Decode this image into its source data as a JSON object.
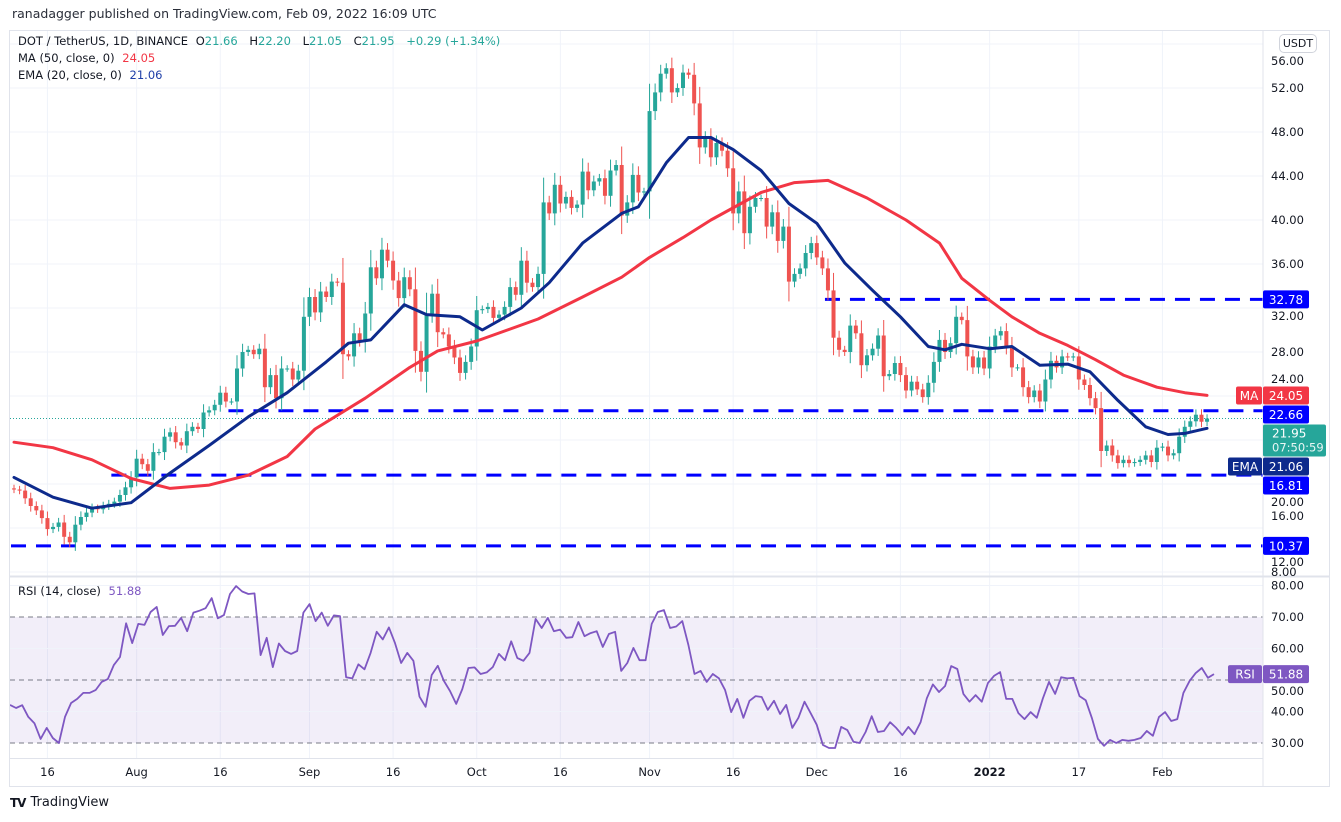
{
  "publish_line": "ranadagger published on TradingView.com, Feb 09, 2022 16:09 UTC",
  "legend": {
    "symbol": "DOT / TetherUS, 1D, BINANCE",
    "o_label": "O",
    "open": "21.66",
    "h_label": "H",
    "high": "22.20",
    "l_label": "L",
    "low": "21.05",
    "c_label": "C",
    "close": "21.95",
    "change": "+0.29 (+1.34%)",
    "ma_label": "MA (50, close, 0)",
    "ma_value": "24.05",
    "ema_label": "EMA (20, close, 0)",
    "ema_value": "21.06",
    "rsi_label": "RSI (14, close)",
    "rsi_value": "51.88"
  },
  "currency_button": "USDT",
  "footer": {
    "logo_icon": "tradingview-logo-icon",
    "logo_mark": "TV",
    "brand": "TradingView"
  },
  "colors": {
    "up": "#26a69a",
    "down": "#ef5350",
    "ma": "#f23645",
    "ema": "#0d2a8c",
    "level": "#0000ff",
    "rsi": "#7e57c2",
    "last_price": "#26a69a"
  },
  "chart_data": {
    "type": "candlestick",
    "title": "DOT / TetherUS, 1D, BINANCE",
    "start_date": "2021-07-10",
    "end_date": "2022-02-09",
    "ylim": [
      8,
      56
    ],
    "price_ticks": [
      8,
      12,
      16,
      20,
      24,
      28,
      32,
      36,
      40,
      44,
      48,
      52,
      56
    ],
    "grid": true,
    "close": [
      15.5,
      15.4,
      14.7,
      14.0,
      13.6,
      12.9,
      11.9,
      12.1,
      12.5,
      11.2,
      10.7,
      12.3,
      13.0,
      13.4,
      13.8,
      13.7,
      14.0,
      14.2,
      14.4,
      15.0,
      15.7,
      16.6,
      18.3,
      17.8,
      17.2,
      18.9,
      18.9,
      20.3,
      20.7,
      19.8,
      19.5,
      20.8,
      21.2,
      21.0,
      22.5,
      22.7,
      23.2,
      24.3,
      23.5,
      23.5,
      26.5,
      28.0,
      28.2,
      27.8,
      28.3,
      24.8,
      25.9,
      23.8,
      26.5,
      26.5,
      25.5,
      26.3,
      31.2,
      33.0,
      31.6,
      33.5,
      33.0,
      34.4,
      34.3,
      27.8,
      27.6,
      29.7,
      29.0,
      31.5,
      35.7,
      34.7,
      37.3,
      36.3,
      34.5,
      32.9,
      34.8,
      33.7,
      28.1,
      26.2,
      31.5,
      33.3,
      29.8,
      29.6,
      28.5,
      27.5,
      26.1,
      27.1,
      28.5,
      31.8,
      31.9,
      32.1,
      31.1,
      31.4,
      32.1,
      33.9,
      33.2,
      36.3,
      34.3,
      33.9,
      35.1,
      41.6,
      40.6,
      43.2,
      41.5,
      42.1,
      41.1,
      41.4,
      44.4,
      42.7,
      43.5,
      43.8,
      42.2,
      44.5,
      45.0,
      40.4,
      41.6,
      44.1,
      42.5,
      42.6,
      49.9,
      51.6,
      53.3,
      53.8,
      51.6,
      52.0,
      53.4,
      53.2,
      50.6,
      46.6,
      47.5,
      45.7,
      47.0,
      46.3,
      44.7,
      40.6,
      42.6,
      38.8,
      41.2,
      42.0,
      42.0,
      39.4,
      40.7,
      38.1,
      39.4,
      34.4,
      35.1,
      35.6,
      37.0,
      37.9,
      36.6,
      35.6,
      33.6,
      29.3,
      28.2,
      28.0,
      30.4,
      29.7,
      26.8,
      27.7,
      28.3,
      29.5,
      25.8,
      26.0,
      27.0,
      25.9,
      24.5,
      25.3,
      24.6,
      23.9,
      25.2,
      27.1,
      29.1,
      28.0,
      28.8,
      31.2,
      30.9,
      27.6,
      26.6,
      27.5,
      26.5,
      28.5,
      29.5,
      29.9,
      28.5,
      26.6,
      26.6,
      24.8,
      23.9,
      24.5,
      23.5,
      25.5,
      27.2,
      26.6,
      27.6,
      27.5,
      27.6,
      25.5,
      25.0,
      23.8,
      22.9,
      19.0,
      19.5,
      18.6,
      17.9,
      18.2,
      17.9,
      18.0,
      18.2,
      18.6,
      18.0,
      19.3,
      19.4,
      18.6,
      18.8,
      20.3,
      21.2,
      21.7,
      22.3,
      21.66,
      21.95
    ],
    "last_price": {
      "value": "21.95",
      "countdown": "07:50:59"
    },
    "ma50": [
      [
        "2021-07-10",
        19.8
      ],
      [
        "2021-07-17",
        19.3
      ],
      [
        "2021-07-24",
        18.2
      ],
      [
        "2021-07-31",
        16.5
      ],
      [
        "2021-08-07",
        15.6
      ],
      [
        "2021-08-14",
        15.9
      ],
      [
        "2021-08-21",
        16.8
      ],
      [
        "2021-08-28",
        18.5
      ],
      [
        "2021-09-02",
        21.0
      ],
      [
        "2021-09-11",
        23.8
      ],
      [
        "2021-09-19",
        26.6
      ],
      [
        "2021-09-24",
        28.1
      ],
      [
        "2021-10-01",
        29.0
      ],
      [
        "2021-10-12",
        31.0
      ],
      [
        "2021-10-20",
        33.0
      ],
      [
        "2021-10-27",
        34.8
      ],
      [
        "2021-11-01",
        36.6
      ],
      [
        "2021-11-07",
        38.4
      ],
      [
        "2021-11-12",
        40.0
      ],
      [
        "2021-11-21",
        42.5
      ],
      [
        "2021-11-27",
        43.4
      ],
      [
        "2021-12-03",
        43.6
      ],
      [
        "2021-12-10",
        42.0
      ],
      [
        "2021-12-17",
        40.0
      ],
      [
        "2021-12-23",
        37.9
      ],
      [
        "2021-12-27",
        34.7
      ],
      [
        "2022-01-01",
        32.7
      ],
      [
        "2022-01-05",
        31.2
      ],
      [
        "2022-01-10",
        29.7
      ],
      [
        "2022-01-15",
        28.6
      ],
      [
        "2022-01-20",
        27.3
      ],
      [
        "2022-01-25",
        25.9
      ],
      [
        "2022-01-31",
        24.8
      ],
      [
        "2022-02-05",
        24.3
      ],
      [
        "2022-02-09",
        24.05
      ]
    ],
    "ema20": [
      [
        "2021-07-10",
        16.6
      ],
      [
        "2021-07-17",
        14.8
      ],
      [
        "2021-07-24",
        13.8
      ],
      [
        "2021-07-31",
        14.3
      ],
      [
        "2021-08-07",
        17.0
      ],
      [
        "2021-08-14",
        19.5
      ],
      [
        "2021-08-21",
        22.1
      ],
      [
        "2021-08-28",
        24.3
      ],
      [
        "2021-09-04",
        27.1
      ],
      [
        "2021-09-08",
        28.8
      ],
      [
        "2021-09-12",
        29.1
      ],
      [
        "2021-09-18",
        32.3
      ],
      [
        "2021-09-22",
        31.4
      ],
      [
        "2021-09-28",
        31.2
      ],
      [
        "2021-10-02",
        30.0
      ],
      [
        "2021-10-09",
        32.0
      ],
      [
        "2021-10-14",
        34.3
      ],
      [
        "2021-10-20",
        37.9
      ],
      [
        "2021-10-27",
        40.6
      ],
      [
        "2021-10-30",
        41.2
      ],
      [
        "2021-11-04",
        45.2
      ],
      [
        "2021-11-08",
        47.5
      ],
      [
        "2021-11-12",
        47.5
      ],
      [
        "2021-11-16",
        46.4
      ],
      [
        "2021-11-21",
        44.5
      ],
      [
        "2021-11-26",
        41.5
      ],
      [
        "2021-12-01",
        39.7
      ],
      [
        "2021-12-06",
        36.1
      ],
      [
        "2021-12-11",
        33.6
      ],
      [
        "2021-12-16",
        31.2
      ],
      [
        "2021-12-21",
        28.5
      ],
      [
        "2021-12-24",
        28.2
      ],
      [
        "2021-12-27",
        28.7
      ],
      [
        "2022-01-01",
        28.3
      ],
      [
        "2022-01-05",
        28.5
      ],
      [
        "2022-01-10",
        26.8
      ],
      [
        "2022-01-15",
        26.9
      ],
      [
        "2022-01-19",
        26.2
      ],
      [
        "2022-01-24",
        23.6
      ],
      [
        "2022-01-29",
        21.2
      ],
      [
        "2022-02-02",
        20.5
      ],
      [
        "2022-02-05",
        20.6
      ],
      [
        "2022-02-09",
        21.06
      ]
    ],
    "levels": [
      {
        "value": 32.78,
        "label": "32.78",
        "from": "2021-12-03"
      },
      {
        "value": 22.66,
        "label": "22.66",
        "from": "2021-08-18"
      },
      {
        "value": 16.81,
        "label": "16.81",
        "from": "2021-07-28"
      },
      {
        "value": 10.37,
        "label": "10.37",
        "from": "2021-07-10"
      }
    ],
    "ma_tag": {
      "label": "MA",
      "value": "24.05"
    },
    "ema_tag": {
      "label": "EMA",
      "value": "21.06"
    },
    "time_labels": [
      {
        "label": "16",
        "date": "2021-07-16"
      },
      {
        "label": "Aug",
        "date": "2021-08-01"
      },
      {
        "label": "16",
        "date": "2021-08-16"
      },
      {
        "label": "Sep",
        "date": "2021-09-01"
      },
      {
        "label": "16",
        "date": "2021-09-16"
      },
      {
        "label": "Oct",
        "date": "2021-10-01"
      },
      {
        "label": "16",
        "date": "2021-10-16"
      },
      {
        "label": "Nov",
        "date": "2021-11-01"
      },
      {
        "label": "16",
        "date": "2021-11-16"
      },
      {
        "label": "Dec",
        "date": "2021-12-01"
      },
      {
        "label": "16",
        "date": "2021-12-16"
      },
      {
        "label": "2022",
        "date": "2022-01-01",
        "bold": true
      },
      {
        "label": "17",
        "date": "2022-01-17"
      },
      {
        "label": "Feb",
        "date": "2022-02-01"
      }
    ],
    "rsi": {
      "period": 14,
      "ylim": [
        30,
        80
      ],
      "ticks": [
        30,
        40,
        50,
        60,
        70,
        80
      ],
      "bands": [
        30,
        50,
        70
      ],
      "tag": {
        "label": "RSI",
        "value": "51.88"
      },
      "values": [
        42.1,
        41.1,
        42,
        38.3,
        36.3,
        31.3,
        34.8,
        31.6,
        30,
        38.3,
        42.7,
        44,
        45.9,
        45.9,
        46.8,
        49.4,
        50.3,
        54.8,
        57.3,
        68,
        61.7,
        67.8,
        67.5,
        71.6,
        73.2,
        64.3,
        67.1,
        67.2,
        69.7,
        65.5,
        71.4,
        72,
        72.8,
        76,
        69.6,
        70.6,
        77.3,
        79.8,
        78.1,
        77.3,
        77.5,
        57.9,
        63.4,
        54.1,
        61.6,
        59.2,
        58.3,
        59.2,
        71.4,
        74.1,
        68.7,
        71.4,
        67.2,
        70.5,
        70.3,
        50.9,
        50.5,
        55,
        53.4,
        58.6,
        65.3,
        62.9,
        66.7,
        61.7,
        55.4,
        58.6,
        56.1,
        44.7,
        41.5,
        51.6,
        54.5,
        49.7,
        46.5,
        42.4,
        47.1,
        53.8,
        54,
        51.9,
        52.4,
        54.1,
        58.3,
        56.3,
        62.3,
        57,
        56.1,
        58.6,
        69.4,
        66.5,
        69.7,
        65.5,
        66,
        63.4,
        63.6,
        68.4,
        63.9,
        64.9,
        65.5,
        60.5,
        64.6,
        65.3,
        52.9,
        55.4,
        60.2,
        56.3,
        56.3,
        67.8,
        71.6,
        72.2,
        66.5,
        67,
        68.7,
        61.1,
        51.9,
        52.9,
        49.4,
        51.9,
        50.5,
        46.8,
        39.8,
        44,
        38,
        43.4,
        44.9,
        44.6,
        40.5,
        43.4,
        39.2,
        42.1,
        34.8,
        38,
        43.1,
        39.5,
        35.8,
        29.4,
        28.4,
        28.4,
        35.1,
        34.1,
        30.4,
        30,
        33.5,
        38.5,
        33.5,
        33.8,
        36.6,
        34.8,
        32.5,
        35.1,
        32.8,
        36.6,
        44.2,
        48.6,
        46.2,
        48.1,
        54.4,
        53.5,
        45.6,
        43.1,
        45.2,
        43.1,
        49,
        51.3,
        52.5,
        44,
        44,
        39.5,
        37.6,
        39.8,
        38,
        44.2,
        49.4,
        45.6,
        50.9,
        50.5,
        50.7,
        44.9,
        43.6,
        38,
        31.3,
        29.1,
        31,
        30,
        31,
        30.7,
        31,
        31.6,
        33.8,
        32.3,
        38.3,
        39.8,
        37,
        37.6,
        45.9,
        49.7,
        52.2,
        53.8,
        50.7,
        51.88
      ]
    }
  }
}
